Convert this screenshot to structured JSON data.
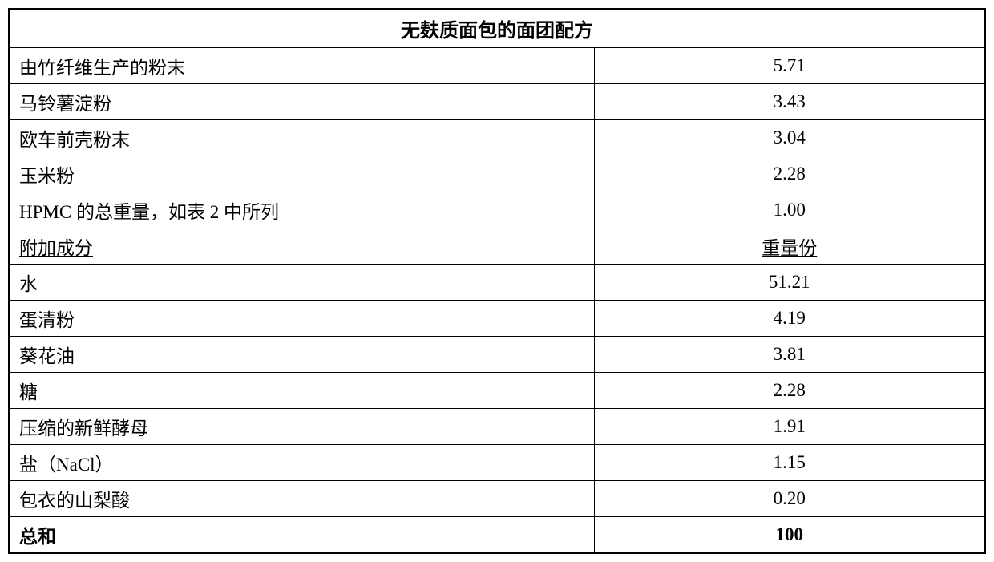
{
  "table": {
    "title": "无麸质面包的面团配方",
    "title_fontsize": 24,
    "cell_fontsize": 23,
    "border_color": "#000000",
    "background_color": "#ffffff",
    "col_left_width_pct": 60,
    "col_right_width_pct": 40,
    "rows": [
      {
        "label": "由竹纤维生产的粉末",
        "value": "5.71",
        "label_underline": false,
        "value_underline": false,
        "bold": false
      },
      {
        "label": "马铃薯淀粉",
        "value": "3.43",
        "label_underline": false,
        "value_underline": false,
        "bold": false
      },
      {
        "label": "欧车前壳粉末",
        "value": "3.04",
        "label_underline": false,
        "value_underline": false,
        "bold": false
      },
      {
        "label": "玉米粉",
        "value": "2.28",
        "label_underline": false,
        "value_underline": false,
        "bold": false
      },
      {
        "label": "HPMC 的总重量，如表 2 中所列",
        "value": "1.00",
        "label_underline": false,
        "value_underline": false,
        "bold": false
      },
      {
        "label": "附加成分",
        "value": "重量份",
        "label_underline": true,
        "value_underline": true,
        "bold": false
      },
      {
        "label": "水",
        "value": "51.21",
        "label_underline": false,
        "value_underline": false,
        "bold": false
      },
      {
        "label": "蛋清粉",
        "value": "4.19",
        "label_underline": false,
        "value_underline": false,
        "bold": false
      },
      {
        "label": "葵花油",
        "value": "3.81",
        "label_underline": false,
        "value_underline": false,
        "bold": false
      },
      {
        "label": "糖",
        "value": "2.28",
        "label_underline": false,
        "value_underline": false,
        "bold": false
      },
      {
        "label": "压缩的新鲜酵母",
        "value": "1.91",
        "label_underline": false,
        "value_underline": false,
        "bold": false
      },
      {
        "label": "盐（NaCl）",
        "value": "1.15",
        "label_underline": false,
        "value_underline": false,
        "bold": false
      },
      {
        "label": "包衣的山梨酸",
        "value": "0.20",
        "label_underline": false,
        "value_underline": false,
        "bold": false
      },
      {
        "label": "总和",
        "value": "100",
        "label_underline": false,
        "value_underline": false,
        "bold": true
      }
    ]
  }
}
